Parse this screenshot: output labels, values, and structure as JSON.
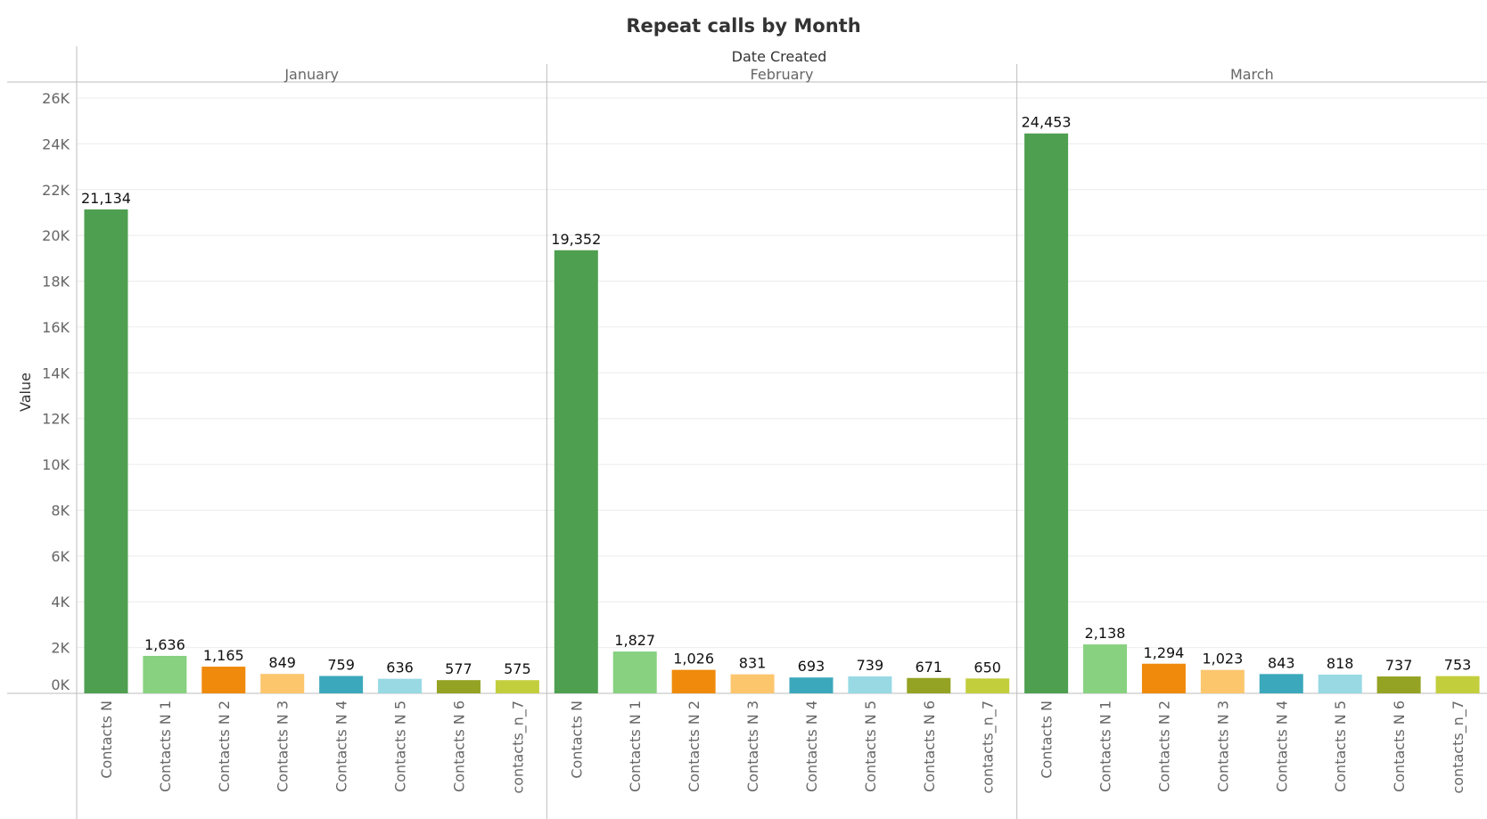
{
  "chart_data": {
    "type": "bar",
    "title": "Repeat calls by Month",
    "column_header": "Date Created",
    "ylabel": "Value",
    "ylim": [
      0,
      26000
    ],
    "y_ticks": [
      0,
      2000,
      4000,
      6000,
      8000,
      10000,
      12000,
      14000,
      16000,
      18000,
      20000,
      22000,
      24000,
      26000
    ],
    "y_tick_labels": [
      "0K",
      "2K",
      "4K",
      "6K",
      "8K",
      "10K",
      "12K",
      "14K",
      "16K",
      "18K",
      "20K",
      "22K",
      "24K",
      "26K"
    ],
    "grid": true,
    "categories": [
      "Contacts N",
      "Contacts N 1",
      "Contacts N 2",
      "Contacts N 3",
      "Contacts N 4",
      "Contacts N 5",
      "Contacts N 6",
      "contacts_n_7"
    ],
    "colors": [
      "#4e9f50",
      "#87d180",
      "#ef8a0c",
      "#fcc66d",
      "#3ca8bc",
      "#98d9e4",
      "#94a323",
      "#c3ce3d"
    ],
    "panels": [
      {
        "month": "January",
        "values": [
          21134,
          1636,
          1165,
          849,
          759,
          636,
          577,
          575
        ],
        "labels": [
          "21,134",
          "1,636",
          "1,165",
          "849",
          "759",
          "636",
          "577",
          "575"
        ]
      },
      {
        "month": "February",
        "values": [
          19352,
          1827,
          1026,
          831,
          693,
          739,
          671,
          650
        ],
        "labels": [
          "19,352",
          "1,827",
          "1,026",
          "831",
          "693",
          "739",
          "671",
          "650"
        ]
      },
      {
        "month": "March",
        "values": [
          24453,
          2138,
          1294,
          1023,
          843,
          818,
          737,
          753
        ],
        "labels": [
          "24,453",
          "2,138",
          "1,294",
          "1,023",
          "843",
          "818",
          "737",
          "753"
        ]
      }
    ]
  }
}
